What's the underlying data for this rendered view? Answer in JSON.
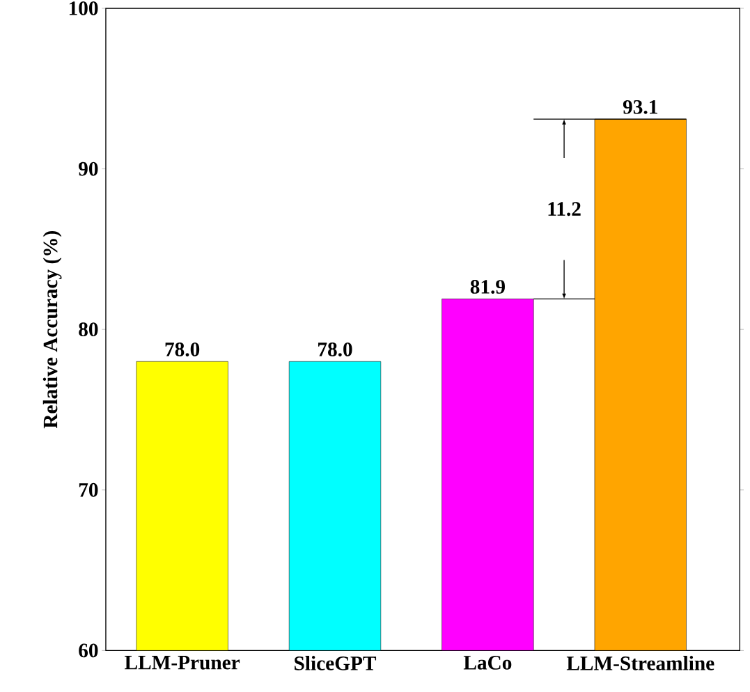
{
  "chart_data": {
    "type": "bar",
    "ylabel": "Relative Accuracy (%)",
    "categories": [
      "LLM-Pruner",
      "SliceGPT",
      "LaCo",
      "LLM-Streamline"
    ],
    "values": [
      78.0,
      78.0,
      81.9,
      93.1
    ],
    "value_labels": [
      "78.0",
      "78.0",
      "81.9",
      "93.1"
    ],
    "colors": [
      "#ffff00",
      "#00ffff",
      "#ff00ff",
      "#ffa500"
    ],
    "ylim": [
      60,
      100
    ],
    "yticks": [
      60,
      70,
      80,
      90,
      100
    ],
    "annotations": [
      "11.2"
    ]
  }
}
